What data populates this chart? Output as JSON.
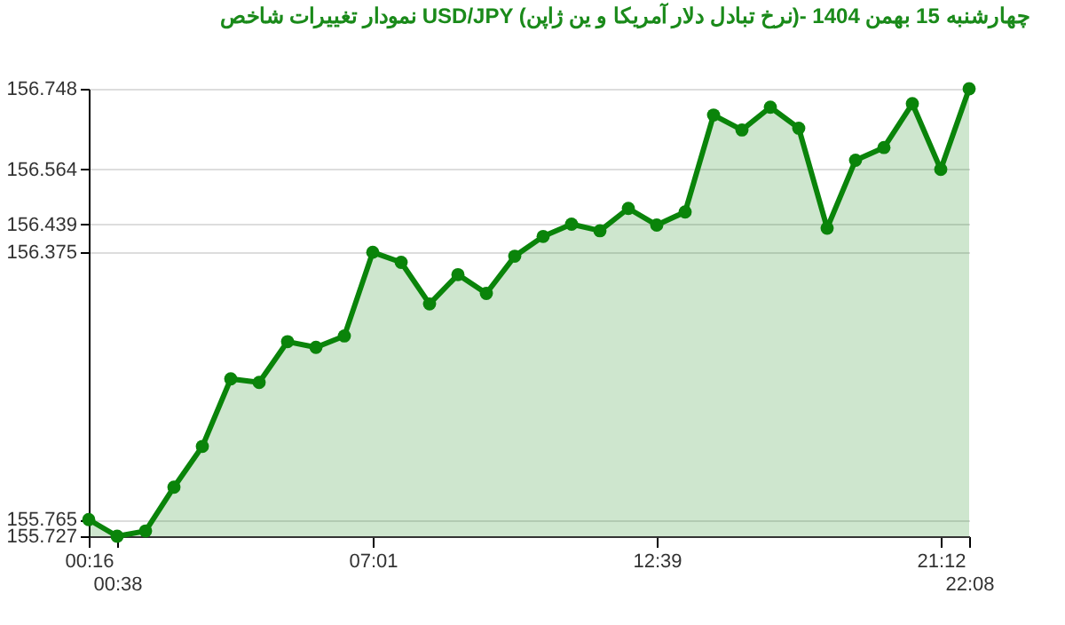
{
  "chart_data": {
    "type": "area",
    "title": "نمودار تغییرات شاخص USD/JPY (نرخ تبادل دلار آمریکا و ین ژاپن)- چهارشنبه  15 بهمن 1404",
    "categories": [
      "00:16",
      "00:38",
      null,
      null,
      null,
      null,
      null,
      null,
      null,
      null,
      "07:01",
      null,
      null,
      null,
      null,
      null,
      null,
      null,
      null,
      null,
      "12:39",
      null,
      null,
      null,
      null,
      null,
      null,
      null,
      null,
      null,
      "21:12",
      "22:08"
    ],
    "series": [
      {
        "color": "#0a840a",
        "values": [
          155.765,
          155.727,
          155.739,
          155.839,
          155.932,
          156.086,
          156.078,
          156.171,
          156.158,
          156.184,
          156.375,
          156.352,
          156.257,
          156.324,
          156.281,
          156.366,
          156.411,
          156.439,
          156.424,
          156.475,
          156.437,
          156.467,
          156.688,
          156.654,
          156.706,
          156.658,
          156.43,
          156.585,
          156.614,
          156.714,
          156.564,
          156.748
        ]
      }
    ],
    "ylim": [
      155.727,
      156.748
    ],
    "yticks": [
      155.727,
      155.765,
      156.375,
      156.439,
      156.564,
      156.748
    ],
    "grid": "y",
    "marker": "circle",
    "line_style": "solid"
  }
}
